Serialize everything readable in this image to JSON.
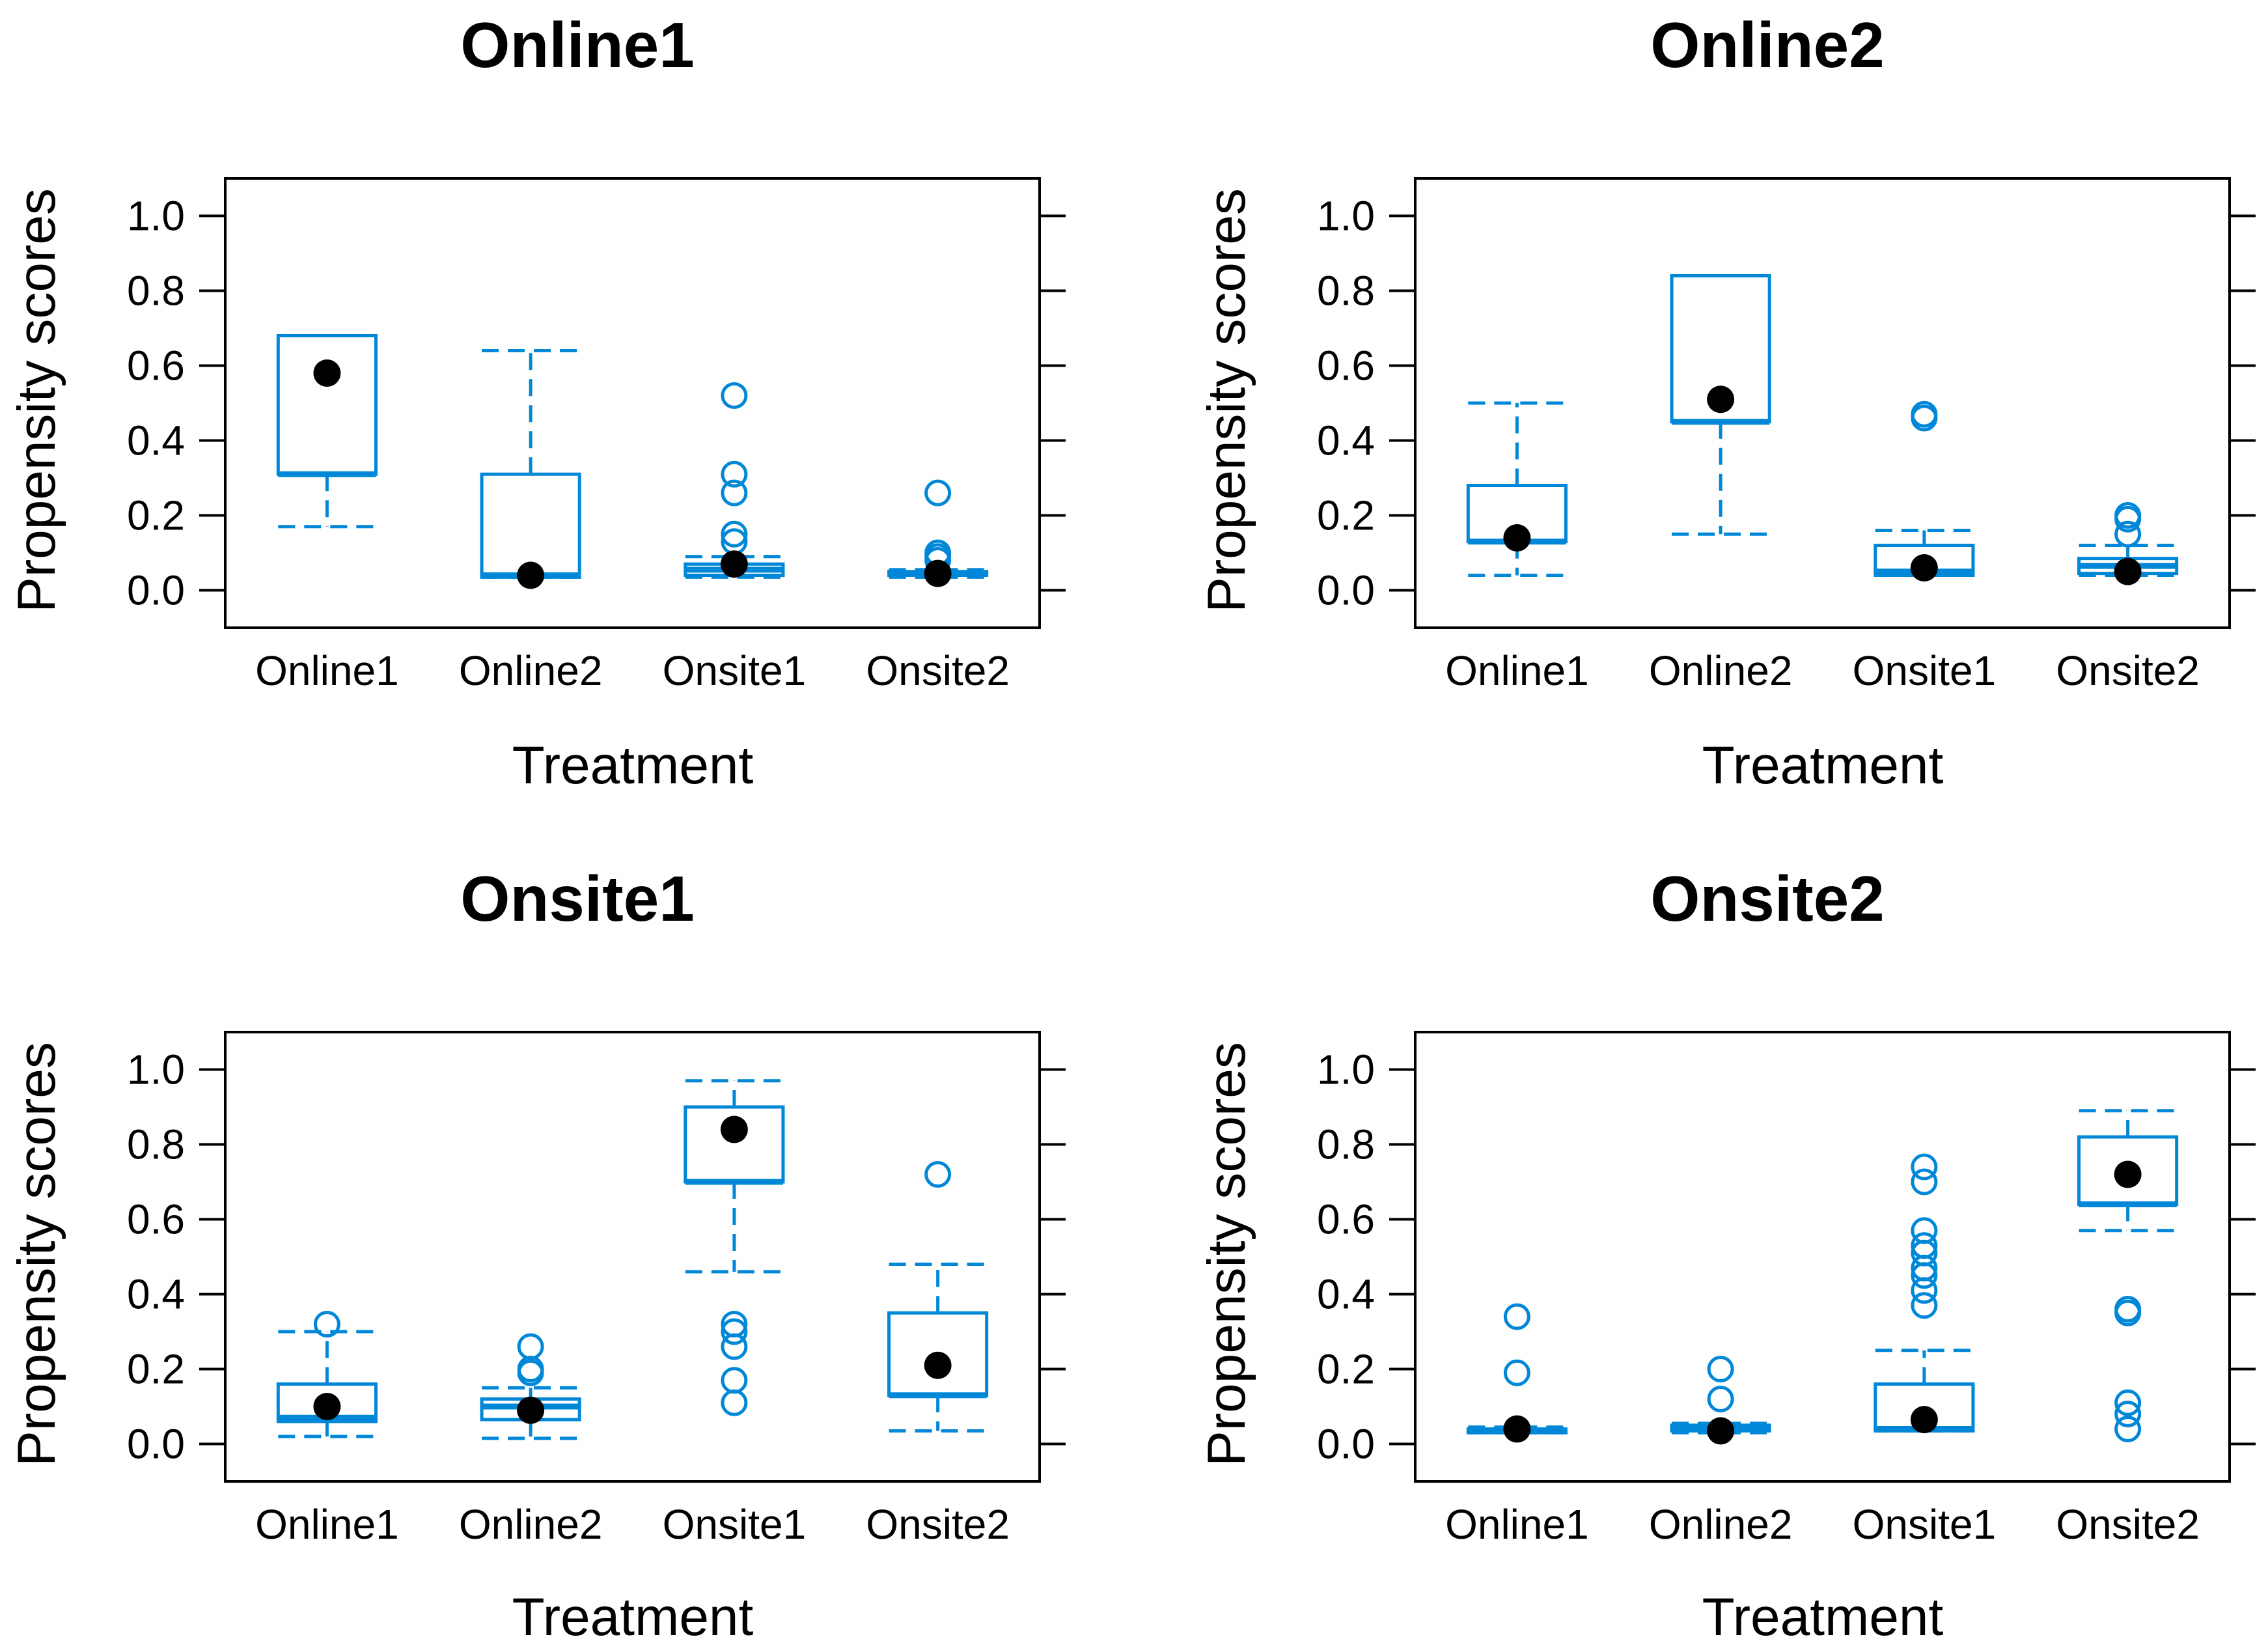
{
  "chart_data": [
    {
      "type": "box",
      "title": "Online1",
      "xlabel": "Treatment",
      "ylabel": "Propensity scores",
      "ylim": [
        -0.1,
        1.1
      ],
      "yticks": [
        "0.0",
        "0.2",
        "0.4",
        "0.6",
        "0.8",
        "1.0"
      ],
      "categories": [
        "Online1",
        "Online2",
        "Onsite1",
        "Onsite2"
      ],
      "boxes": [
        {
          "category": "Online1",
          "whisker_low": 0.17,
          "q1": 0.31,
          "median": 0.31,
          "q3": 0.68,
          "whisker_high": 0.68,
          "mean": 0.58,
          "outliers": []
        },
        {
          "category": "Online2",
          "whisker_low": 0.035,
          "q1": 0.035,
          "median": 0.04,
          "q3": 0.31,
          "whisker_high": 0.64,
          "mean": 0.04,
          "outliers": []
        },
        {
          "category": "Onsite1",
          "whisker_low": 0.035,
          "q1": 0.04,
          "median": 0.055,
          "q3": 0.07,
          "whisker_high": 0.09,
          "mean": 0.07,
          "outliers": [
            0.52,
            0.31,
            0.26,
            0.15,
            0.13
          ]
        },
        {
          "category": "Onsite2",
          "whisker_low": 0.035,
          "q1": 0.04,
          "median": 0.045,
          "q3": 0.05,
          "whisker_high": 0.055,
          "mean": 0.045,
          "outliers": [
            0.26,
            0.1,
            0.09,
            0.08
          ]
        }
      ]
    },
    {
      "type": "box",
      "title": "Online2",
      "xlabel": "Treatment",
      "ylabel": "Propensity scores",
      "ylim": [
        -0.1,
        1.1
      ],
      "yticks": [
        "0.0",
        "0.2",
        "0.4",
        "0.6",
        "0.8",
        "1.0"
      ],
      "categories": [
        "Online1",
        "Online2",
        "Onsite1",
        "Onsite2"
      ],
      "boxes": [
        {
          "category": "Online1",
          "whisker_low": 0.04,
          "q1": 0.13,
          "median": 0.13,
          "q3": 0.28,
          "whisker_high": 0.5,
          "mean": 0.14,
          "outliers": []
        },
        {
          "category": "Online2",
          "whisker_low": 0.15,
          "q1": 0.45,
          "median": 0.45,
          "q3": 0.84,
          "whisker_high": 0.84,
          "mean": 0.51,
          "outliers": []
        },
        {
          "category": "Onsite1",
          "whisker_low": 0.04,
          "q1": 0.04,
          "median": 0.05,
          "q3": 0.12,
          "whisker_high": 0.16,
          "mean": 0.06,
          "outliers": [
            0.47,
            0.46
          ]
        },
        {
          "category": "Onsite2",
          "whisker_low": 0.04,
          "q1": 0.045,
          "median": 0.065,
          "q3": 0.085,
          "whisker_high": 0.12,
          "mean": 0.05,
          "outliers": [
            0.2,
            0.19,
            0.15
          ]
        }
      ]
    },
    {
      "type": "box",
      "title": "Onsite1",
      "xlabel": "Treatment",
      "ylabel": "Propensity scores",
      "ylim": [
        -0.1,
        1.1
      ],
      "yticks": [
        "0.0",
        "0.2",
        "0.4",
        "0.6",
        "0.8",
        "1.0"
      ],
      "categories": [
        "Online1",
        "Online2",
        "Onsite1",
        "Onsite2"
      ],
      "boxes": [
        {
          "category": "Online1",
          "whisker_low": 0.02,
          "q1": 0.06,
          "median": 0.07,
          "q3": 0.16,
          "whisker_high": 0.3,
          "mean": 0.1,
          "outliers": [
            0.32
          ]
        },
        {
          "category": "Online2",
          "whisker_low": 0.015,
          "q1": 0.065,
          "median": 0.1,
          "q3": 0.12,
          "whisker_high": 0.15,
          "mean": 0.09,
          "outliers": [
            0.26,
            0.2,
            0.19
          ]
        },
        {
          "category": "Onsite1",
          "whisker_low": 0.46,
          "q1": 0.7,
          "median": 0.7,
          "q3": 0.9,
          "whisker_high": 0.97,
          "mean": 0.84,
          "outliers": [
            0.32,
            0.3,
            0.26,
            0.17,
            0.11
          ]
        },
        {
          "category": "Onsite2",
          "whisker_low": 0.035,
          "q1": 0.13,
          "median": 0.13,
          "q3": 0.35,
          "whisker_high": 0.48,
          "mean": 0.21,
          "outliers": [
            0.72
          ]
        }
      ]
    },
    {
      "type": "box",
      "title": "Onsite2",
      "xlabel": "Treatment",
      "ylabel": "Propensity scores",
      "ylim": [
        -0.1,
        1.1
      ],
      "yticks": [
        "0.0",
        "0.2",
        "0.4",
        "0.6",
        "0.8",
        "1.0"
      ],
      "categories": [
        "Online1",
        "Online2",
        "Onsite1",
        "Onsite2"
      ],
      "boxes": [
        {
          "category": "Online1",
          "whisker_low": 0.03,
          "q1": 0.03,
          "median": 0.035,
          "q3": 0.04,
          "whisker_high": 0.045,
          "mean": 0.04,
          "outliers": [
            0.34,
            0.19
          ]
        },
        {
          "category": "Online2",
          "whisker_low": 0.03,
          "q1": 0.035,
          "median": 0.04,
          "q3": 0.05,
          "whisker_high": 0.055,
          "mean": 0.035,
          "outliers": [
            0.2,
            0.12
          ]
        },
        {
          "category": "Onsite1",
          "whisker_low": 0.035,
          "q1": 0.035,
          "median": 0.04,
          "q3": 0.16,
          "whisker_high": 0.25,
          "mean": 0.065,
          "outliers": [
            0.74,
            0.7,
            0.57,
            0.53,
            0.51,
            0.47,
            0.45,
            0.41,
            0.37
          ]
        },
        {
          "category": "Onsite2",
          "whisker_low": 0.57,
          "q1": 0.64,
          "median": 0.64,
          "q3": 0.82,
          "whisker_high": 0.89,
          "mean": 0.72,
          "outliers": [
            0.36,
            0.35,
            0.11,
            0.08,
            0.04
          ]
        }
      ]
    }
  ]
}
